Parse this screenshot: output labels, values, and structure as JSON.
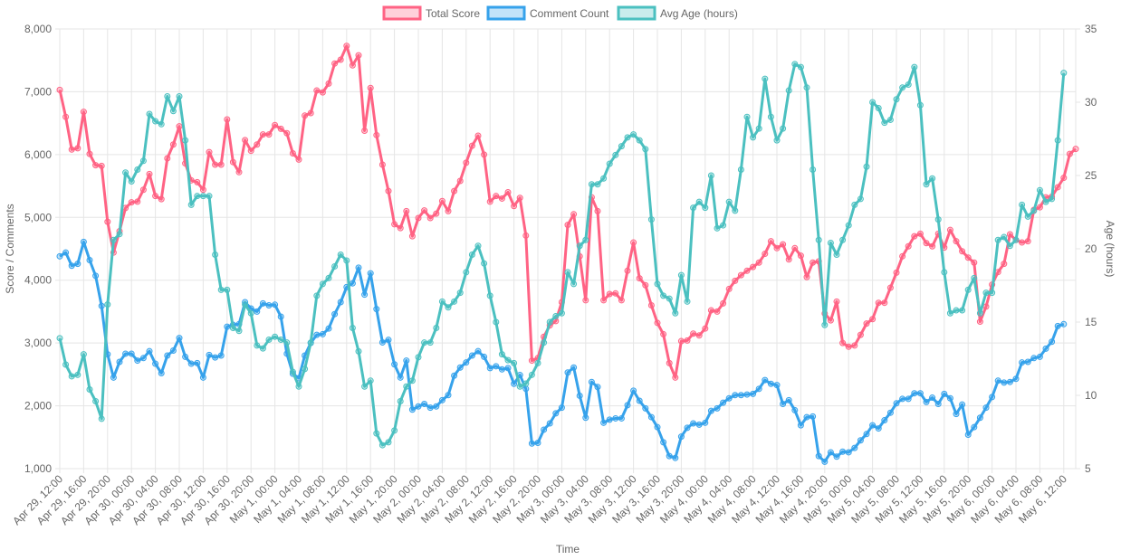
{
  "chart_data": {
    "type": "line",
    "xlabel": "Time",
    "ylabel_left": "Score / Comments",
    "ylabel_right": "Age (hours)",
    "ylim_left": [
      1000,
      8000
    ],
    "ylim_right": [
      5,
      35
    ],
    "yticks_left": [
      "1,000",
      "2,000",
      "3,000",
      "4,000",
      "5,000",
      "6,000",
      "7,000",
      "8,000"
    ],
    "yticks_right": [
      "5",
      "10",
      "15",
      "20",
      "25",
      "30",
      "35"
    ],
    "x_tick_labels": [
      "Apr 29, 12:00",
      "Apr 29, 16:00",
      "Apr 29, 20:00",
      "Apr 30, 00:00",
      "Apr 30, 04:00",
      "Apr 30, 08:00",
      "Apr 30, 12:00",
      "Apr 30, 16:00",
      "Apr 30, 20:00",
      "May 1, 00:00",
      "May 1, 04:00",
      "May 1, 08:00",
      "May 1, 12:00",
      "May 1, 16:00",
      "May 1, 20:00",
      "May 2, 00:00",
      "May 2, 04:00",
      "May 2, 08:00",
      "May 2, 12:00",
      "May 2, 16:00",
      "May 2, 20:00",
      "May 3, 00:00",
      "May 3, 04:00",
      "May 3, 08:00",
      "May 3, 12:00",
      "May 3, 16:00",
      "May 3, 20:00",
      "May 4, 00:00",
      "May 4, 04:00",
      "May 4, 08:00",
      "May 4, 12:00",
      "May 4, 16:00",
      "May 4, 20:00",
      "May 5, 00:00",
      "May 5, 04:00",
      "May 5, 08:00",
      "May 5, 12:00",
      "May 5, 16:00",
      "May 5, 20:00",
      "May 6, 00:00",
      "May 6, 04:00",
      "May 6, 08:00",
      "May 6, 12:00"
    ],
    "grid": true,
    "legend_position": "top",
    "series": [
      {
        "name": "Total Score",
        "axis": "left",
        "color": "#ff6384",
        "values": [
          7030,
          6600,
          6080,
          6100,
          6680,
          6010,
          5830,
          5820,
          4930,
          4440,
          4780,
          5150,
          5240,
          5250,
          5440,
          5690,
          5340,
          5290,
          5940,
          6160,
          6450,
          5860,
          5590,
          5560,
          5440,
          6040,
          5840,
          5840,
          6560,
          5880,
          5720,
          6230,
          6060,
          6160,
          6320,
          6320,
          6470,
          6410,
          6340,
          6020,
          5920,
          6620,
          6660,
          7020,
          6990,
          7130,
          7450,
          7510,
          7730,
          7420,
          7580,
          6380,
          7060,
          6310,
          5840,
          5420,
          4890,
          4830,
          5100,
          4700,
          4990,
          5110,
          4990,
          5060,
          5260,
          5100,
          5420,
          5580,
          5870,
          6140,
          6300,
          6000,
          5250,
          5340,
          5300,
          5400,
          5180,
          5310,
          4710,
          2720,
          2760,
          3100,
          3280,
          3350,
          3650,
          4880,
          5050,
          4380,
          3680,
          5320,
          5100,
          3680,
          3780,
          3790,
          3680,
          4150,
          4600,
          4030,
          3920,
          3600,
          3320,
          3140,
          2680,
          2450,
          3030,
          3040,
          3150,
          3120,
          3230,
          3520,
          3500,
          3630,
          3860,
          3990,
          4080,
          4150,
          4210,
          4280,
          4420,
          4620,
          4510,
          4570,
          4330,
          4510,
          4390,
          4050,
          4280,
          4300,
          3470,
          3360,
          3660,
          3000,
          2940,
          2960,
          3130,
          3310,
          3380,
          3640,
          3640,
          3880,
          4120,
          4380,
          4540,
          4700,
          4740,
          4590,
          4540,
          4740,
          4520,
          4800,
          4620,
          4460,
          4360,
          4280,
          3340,
          3580,
          3930,
          4130,
          4260,
          4730,
          4640,
          4600,
          4620,
          5120,
          5160,
          5320,
          5330,
          5480,
          5630,
          6010,
          6090
        ]
      },
      {
        "name": "Comment Count",
        "axis": "left",
        "color": "#36a2eb",
        "values": [
          4380,
          4440,
          4230,
          4260,
          4610,
          4320,
          4070,
          3590,
          2820,
          2450,
          2700,
          2830,
          2830,
          2720,
          2760,
          2870,
          2670,
          2520,
          2800,
          2880,
          3080,
          2780,
          2670,
          2680,
          2450,
          2810,
          2770,
          2800,
          3260,
          3290,
          3300,
          3650,
          3550,
          3500,
          3630,
          3600,
          3610,
          3420,
          2830,
          2510,
          2440,
          2800,
          3000,
          3130,
          3140,
          3230,
          3460,
          3650,
          3890,
          3950,
          4200,
          3770,
          4110,
          3540,
          3010,
          3050,
          2660,
          2450,
          2720,
          1940,
          1990,
          2030,
          1970,
          1990,
          2090,
          2170,
          2480,
          2610,
          2690,
          2800,
          2870,
          2780,
          2600,
          2630,
          2580,
          2600,
          2350,
          2490,
          2270,
          1400,
          1410,
          1620,
          1720,
          1880,
          1970,
          2530,
          2610,
          2160,
          1810,
          2380,
          2300,
          1730,
          1780,
          1800,
          1800,
          2010,
          2240,
          2080,
          1960,
          1820,
          1660,
          1420,
          1200,
          1170,
          1510,
          1650,
          1720,
          1700,
          1730,
          1920,
          1960,
          2050,
          2120,
          2170,
          2170,
          2180,
          2190,
          2270,
          2410,
          2350,
          2330,
          2030,
          2090,
          1930,
          1690,
          1820,
          1830,
          1200,
          1110,
          1260,
          1190,
          1270,
          1260,
          1330,
          1450,
          1550,
          1690,
          1640,
          1770,
          1890,
          2040,
          2110,
          2110,
          2200,
          2200,
          2060,
          2130,
          2030,
          2190,
          2120,
          1870,
          2020,
          1540,
          1660,
          1810,
          1970,
          2140,
          2400,
          2370,
          2380,
          2430,
          2690,
          2700,
          2760,
          2780,
          2910,
          3020,
          3270,
          3300
        ]
      },
      {
        "name": "Avg Age (hours)",
        "axis": "right",
        "color": "#4bc0c0",
        "values": [
          13.9,
          12.1,
          11.3,
          11.4,
          12.8,
          10.4,
          9.6,
          8.4,
          16.2,
          20.6,
          21.0,
          25.2,
          24.6,
          25.4,
          26.0,
          29.2,
          28.7,
          28.5,
          30.4,
          29.4,
          30.4,
          27.4,
          23.0,
          23.6,
          23.6,
          23.6,
          19.6,
          17.2,
          17.2,
          14.6,
          14.4,
          16.2,
          15.6,
          13.4,
          13.2,
          13.8,
          14.0,
          13.8,
          13.6,
          11.6,
          10.6,
          11.8,
          13.6,
          16.8,
          17.6,
          18.0,
          18.8,
          19.6,
          19.2,
          14.6,
          13.0,
          10.6,
          11.0,
          7.4,
          6.6,
          6.8,
          7.6,
          9.6,
          10.6,
          11.0,
          12.6,
          13.6,
          13.6,
          14.6,
          16.4,
          16.0,
          16.4,
          17.0,
          18.4,
          19.6,
          20.2,
          19.0,
          16.8,
          15.0,
          12.8,
          12.4,
          12.2,
          10.6,
          10.8,
          11.4,
          12.2,
          13.6,
          15.0,
          15.4,
          15.6,
          18.4,
          17.6,
          20.2,
          20.6,
          24.4,
          24.4,
          24.8,
          25.8,
          26.4,
          27.0,
          27.6,
          27.8,
          27.4,
          26.8,
          22.0,
          17.6,
          16.8,
          16.6,
          15.6,
          18.2,
          16.4,
          22.8,
          23.2,
          22.8,
          25.0,
          21.4,
          21.6,
          23.2,
          22.6,
          25.4,
          29.0,
          27.6,
          28.2,
          31.6,
          29.0,
          27.4,
          28.2,
          30.8,
          32.6,
          32.4,
          31.0,
          25.4,
          20.6,
          14.8,
          20.4,
          19.6,
          20.6,
          21.6,
          23.0,
          23.4,
          25.6,
          30.0,
          29.6,
          28.6,
          28.8,
          30.2,
          31.0,
          31.2,
          32.4,
          29.8,
          24.4,
          24.8,
          22.0,
          18.4,
          15.6,
          15.8,
          15.8,
          17.2,
          18.0,
          15.6,
          17.0,
          17.0,
          20.6,
          20.8,
          20.2,
          20.6,
          23.0,
          22.2,
          22.6,
          24.0,
          23.2,
          23.4,
          27.4,
          32.0
        ]
      }
    ]
  }
}
